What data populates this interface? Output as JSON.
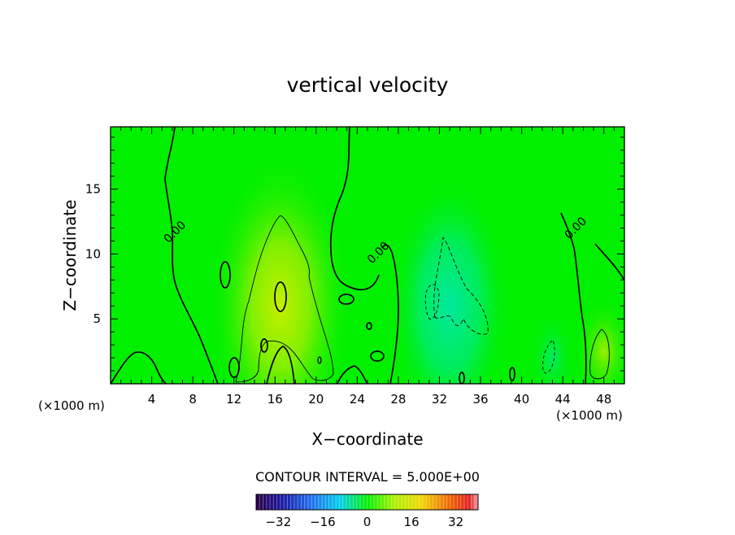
{
  "chart_data": {
    "type": "heatmap",
    "title": "vertical velocity",
    "xlabel": "X−coordinate",
    "ylabel": "Z−coordinate",
    "x_unit_left": "(×1000 m)",
    "x_unit_right": "(×1000 m)",
    "xlim": [
      0,
      50
    ],
    "ylim": [
      0,
      19.8
    ],
    "x_ticks": [
      4,
      8,
      12,
      16,
      20,
      24,
      28,
      32,
      36,
      40,
      44,
      48
    ],
    "x_tick_labels": [
      "4",
      "8",
      "12",
      "16",
      "20",
      "24",
      "28",
      "32",
      "36",
      "40",
      "44",
      "48"
    ],
    "y_ticks": [
      5,
      10,
      15
    ],
    "y_tick_labels": [
      "5",
      "10",
      "15"
    ],
    "contour_interval_text": "CONTOUR INTERVAL = 5.000E+00",
    "contour_labels": [
      {
        "text": "0.00",
        "x": 6.5,
        "z": 11.5
      },
      {
        "text": "0.00",
        "x": 26.3,
        "z": 9.9
      },
      {
        "text": "0.00",
        "x": 45.5,
        "z": 11.8
      }
    ],
    "colorbar": {
      "range": [
        -40,
        40
      ],
      "ticks": [
        -32,
        -16,
        0,
        16,
        32
      ],
      "tick_labels": [
        "−32",
        "−16",
        "0",
        "16",
        "32"
      ]
    },
    "updrafts": [
      {
        "x": 16.5,
        "z": 6.0,
        "value": 12
      },
      {
        "x": 48.0,
        "z": 2.5,
        "value": 9
      }
    ],
    "downdrafts": [
      {
        "x": 33.0,
        "z": 6.0,
        "value": -9
      },
      {
        "x": 43.0,
        "z": 2.0,
        "value": -5
      }
    ]
  }
}
